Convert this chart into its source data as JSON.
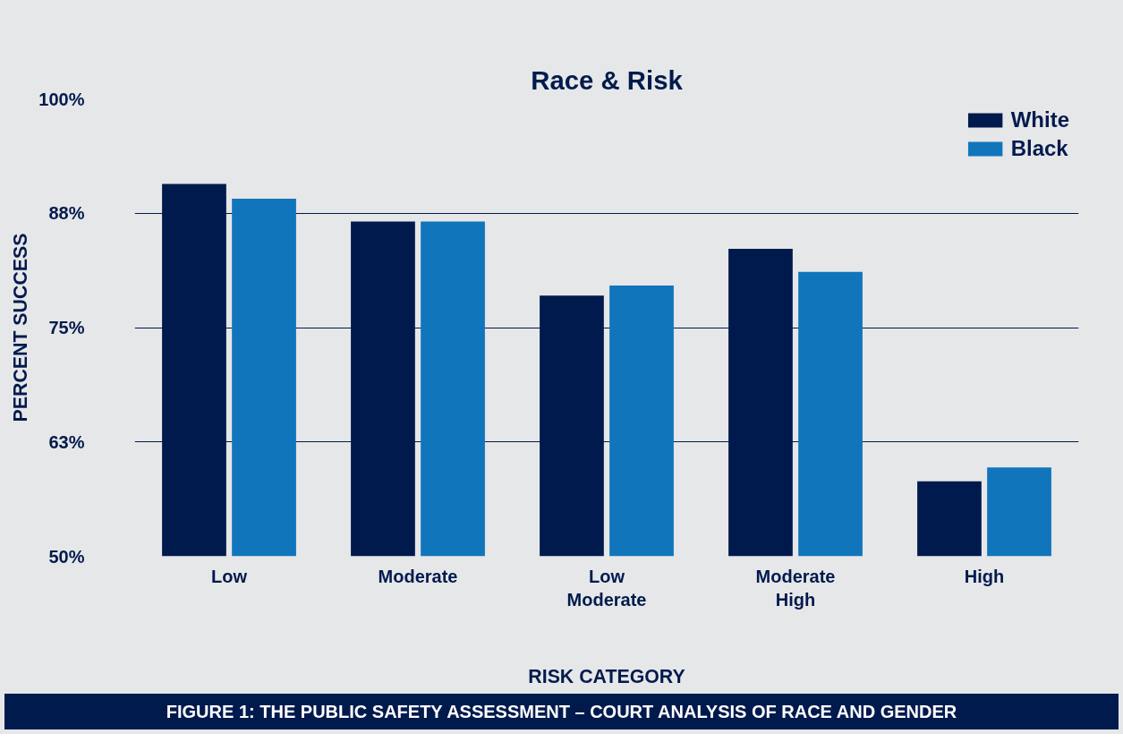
{
  "chart_data": {
    "type": "bar",
    "title": "Race & Risk",
    "xlabel": "RISK CATEGORY",
    "ylabel": "PERCENT SUCCESS",
    "categories": [
      "Low",
      "Moderate",
      "Low Moderate",
      "Moderate High",
      "High"
    ],
    "series": [
      {
        "name": "White",
        "color": "#001a4d",
        "values": [
          90.7,
          86.6,
          78.5,
          83.6,
          58.2
        ]
      },
      {
        "name": "Black",
        "color": "#1175bc",
        "values": [
          89.1,
          86.6,
          79.6,
          81.1,
          59.7
        ]
      }
    ],
    "ylim": [
      50,
      100
    ],
    "yticks": [
      {
        "value": 50,
        "label": "50%"
      },
      {
        "value": 62.5,
        "label": "63%"
      },
      {
        "value": 75,
        "label": "75%"
      },
      {
        "value": 87.5,
        "label": "88%"
      },
      {
        "value": 100,
        "label": "100%"
      }
    ],
    "grid": "y",
    "legend": "top right",
    "annotations": [
      "FIGURE 1: THE PUBLIC SAFETY ASSESSMENT – COURT ANALYSIS OF RACE AND GENDER"
    ]
  }
}
